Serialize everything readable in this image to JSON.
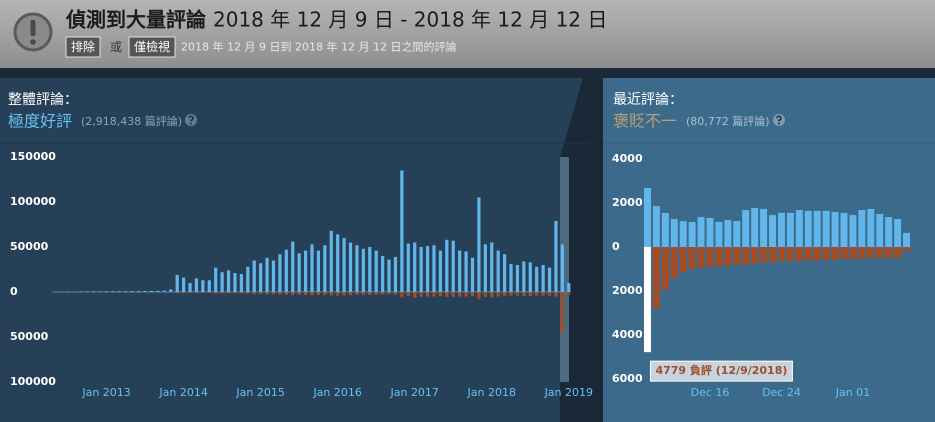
{
  "header": {
    "title": "偵測到大量評論",
    "date_range": "2018 年 12 月 9 日 - 2018 年 12 月 12 日",
    "exclude_button": "排除",
    "or": "或",
    "only_button": "僅檢視",
    "subtitle": "2018 年 12 月 9 日到 2018 年 12 月 12 日之間的評論"
  },
  "overall": {
    "label": "整體評論：",
    "rating": "極度好評",
    "count": "(2,918,438 篇評論)"
  },
  "recent": {
    "label": "最近評論：",
    "rating": "褒貶不一",
    "count": "(80,772 篇評論)"
  },
  "chart_data": [
    {
      "type": "bar",
      "categories": [
        null,
        null,
        null,
        null,
        null,
        null,
        null,
        null,
        "Jan 2013",
        null,
        null,
        null,
        null,
        null,
        null,
        null,
        null,
        null,
        null,
        null,
        "Jan 2014",
        null,
        null,
        null,
        null,
        null,
        null,
        null,
        null,
        null,
        null,
        null,
        "Jan 2015",
        null,
        null,
        null,
        null,
        null,
        null,
        null,
        null,
        null,
        null,
        null,
        "Jan 2016",
        null,
        null,
        null,
        null,
        null,
        null,
        null,
        null,
        null,
        null,
        null,
        "Jan 2017",
        null,
        null,
        null,
        null,
        null,
        null,
        null,
        null,
        null,
        null,
        null,
        "Jan 2018",
        null,
        null,
        null,
        null,
        null,
        null,
        null,
        null,
        null,
        null,
        null,
        "Jan 2019"
      ],
      "series": [
        {
          "color": "#62b6ec",
          "values": [
            300,
            400,
            500,
            500,
            600,
            600,
            700,
            700,
            800,
            800,
            900,
            900,
            1000,
            1000,
            1100,
            1200,
            1300,
            1500,
            3000,
            19000,
            16000,
            10000,
            15000,
            13000,
            13000,
            27000,
            22000,
            24000,
            21000,
            20000,
            28000,
            35000,
            32000,
            38000,
            35000,
            42000,
            47000,
            56000,
            43000,
            46000,
            53000,
            46000,
            52000,
            68000,
            64000,
            60000,
            55000,
            52000,
            48000,
            50000,
            46000,
            40000,
            36000,
            39000,
            135000,
            54000,
            55000,
            50000,
            51000,
            52000,
            46000,
            58000,
            57000,
            46000,
            45000,
            38000,
            105000,
            53000,
            55000,
            46000,
            42000,
            31000,
            30000,
            34000,
            33000,
            28000,
            30000,
            27000,
            79000,
            53000,
            10000
          ]
        },
        {
          "color": "#a34c25",
          "values": [
            -50,
            -50,
            -50,
            -50,
            -50,
            -50,
            -50,
            -50,
            -50,
            -50,
            -50,
            -50,
            -50,
            -50,
            -50,
            -50,
            -50,
            -100,
            -200,
            -1500,
            -1200,
            -1000,
            -1200,
            -1100,
            -1100,
            -1800,
            -1600,
            -1700,
            -1600,
            -1500,
            -2000,
            -2500,
            -2500,
            -2800,
            -2600,
            -3000,
            -3200,
            -3500,
            -3000,
            -3200,
            -3500,
            -3200,
            -3500,
            -4000,
            -4000,
            -3800,
            -3500,
            -3300,
            -3200,
            -3300,
            -3000,
            -2800,
            -2600,
            -2800,
            -6000,
            -4500,
            -6500,
            -5500,
            -5000,
            -5000,
            -4500,
            -5500,
            -5500,
            -5000,
            -5000,
            -4500,
            -8000,
            -5500,
            -6000,
            -5000,
            -4500,
            -4000,
            -4000,
            -4500,
            -4500,
            -4000,
            -4000,
            -4000,
            -5000,
            -46000,
            -3000
          ]
        }
      ],
      "ylim": [
        -100000,
        150000
      ],
      "yticks": [
        150000,
        100000,
        50000,
        0,
        {
          "value": -50000,
          "label": "50000"
        },
        {
          "value": -100000,
          "label": "100000"
        }
      ]
    },
    {
      "type": "bar",
      "categories": [
        null,
        null,
        null,
        null,
        null,
        null,
        null,
        "Dec 16",
        null,
        null,
        null,
        null,
        null,
        null,
        null,
        "Dec 24",
        null,
        null,
        null,
        null,
        null,
        null,
        null,
        "Jan 01",
        null,
        null,
        null,
        null,
        null,
        null
      ],
      "series": [
        {
          "color": "#62b6ec",
          "values": [
            2680,
            1860,
            1550,
            1270,
            1180,
            1140,
            1360,
            1320,
            1140,
            1230,
            1180,
            1680,
            1770,
            1730,
            1450,
            1550,
            1550,
            1680,
            1640,
            1640,
            1640,
            1590,
            1550,
            1450,
            1680,
            1730,
            1500,
            1360,
            1270,
            640
          ]
        },
        {
          "color": "#a34c25",
          "values": [
            -4779,
            -2770,
            -1950,
            -1410,
            -1140,
            -1000,
            -950,
            -900,
            -900,
            -850,
            -800,
            -800,
            -750,
            -700,
            -700,
            -650,
            -650,
            -650,
            -600,
            -600,
            -600,
            -600,
            -550,
            -550,
            -550,
            -500,
            -500,
            -500,
            -500,
            -200
          ]
        }
      ],
      "ylim": [
        -6000,
        4000
      ],
      "yticks": [
        4000,
        2000,
        0,
        {
          "value": -2000,
          "label": "2000"
        },
        {
          "value": -4000,
          "label": "4000"
        },
        {
          "value": -6000,
          "label": "6000"
        }
      ],
      "tooltip": {
        "text": "4779 負評 (12/9/2018)",
        "index": 0,
        "series": 1,
        "color": "#ffffff"
      }
    }
  ]
}
